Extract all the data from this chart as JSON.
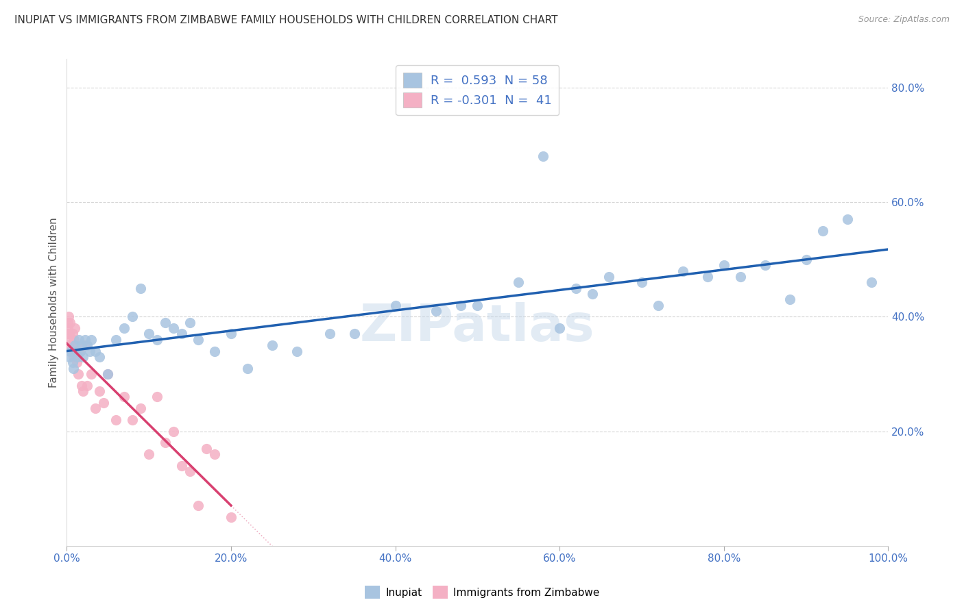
{
  "title": "INUPIAT VS IMMIGRANTS FROM ZIMBABWE FAMILY HOUSEHOLDS WITH CHILDREN CORRELATION CHART",
  "source": "Source: ZipAtlas.com",
  "ylabel": "Family Households with Children",
  "watermark": "ZIPatlas",
  "inupiat_R": 0.593,
  "inupiat_N": 58,
  "zimbabwe_R": -0.301,
  "zimbabwe_N": 41,
  "inupiat_color": "#a8c4e0",
  "zimbabwe_color": "#f4b0c4",
  "inupiat_line_color": "#2060b0",
  "zimbabwe_line_color": "#d84070",
  "background_color": "#ffffff",
  "grid_color": "#cccccc",
  "title_color": "#333333",
  "axis_label_color": "#555555",
  "tick_color": "#4472c4",
  "legend_R_color": "#4472c4",
  "inupiat_x": [
    0.3,
    0.5,
    0.7,
    0.8,
    1.0,
    1.2,
    1.3,
    1.5,
    1.6,
    1.8,
    2.0,
    2.2,
    2.5,
    2.8,
    3.0,
    3.5,
    4.0,
    5.0,
    6.0,
    7.0,
    8.0,
    9.0,
    10.0,
    11.0,
    12.0,
    13.0,
    14.0,
    15.0,
    16.0,
    18.0,
    20.0,
    22.0,
    25.0,
    28.0,
    32.0,
    35.0,
    40.0,
    45.0,
    48.0,
    50.0,
    55.0,
    58.0,
    60.0,
    62.0,
    64.0,
    66.0,
    70.0,
    72.0,
    75.0,
    78.0,
    80.0,
    82.0,
    85.0,
    88.0,
    90.0,
    92.0,
    95.0,
    98.0
  ],
  "inupiat_y": [
    33.0,
    34.0,
    32.0,
    31.0,
    35.0,
    34.0,
    33.0,
    36.0,
    34.0,
    35.0,
    33.0,
    36.0,
    35.0,
    34.0,
    36.0,
    34.0,
    33.0,
    30.0,
    36.0,
    38.0,
    40.0,
    45.0,
    37.0,
    36.0,
    39.0,
    38.0,
    37.0,
    39.0,
    36.0,
    34.0,
    37.0,
    31.0,
    35.0,
    34.0,
    37.0,
    37.0,
    42.0,
    41.0,
    42.0,
    42.0,
    46.0,
    68.0,
    38.0,
    45.0,
    44.0,
    47.0,
    46.0,
    42.0,
    48.0,
    47.0,
    49.0,
    47.0,
    49.0,
    43.0,
    50.0,
    55.0,
    57.0,
    46.0
  ],
  "zimbabwe_x": [
    0.05,
    0.1,
    0.15,
    0.2,
    0.25,
    0.3,
    0.35,
    0.4,
    0.5,
    0.6,
    0.7,
    0.8,
    0.9,
    1.0,
    1.1,
    1.2,
    1.4,
    1.6,
    1.8,
    2.0,
    2.2,
    2.5,
    3.0,
    3.5,
    4.0,
    4.5,
    5.0,
    6.0,
    7.0,
    8.0,
    9.0,
    10.0,
    11.0,
    12.0,
    13.0,
    14.0,
    15.0,
    16.0,
    17.0,
    18.0,
    20.0
  ],
  "zimbabwe_y": [
    37.0,
    38.0,
    39.0,
    40.0,
    35.0,
    37.0,
    34.0,
    39.0,
    36.0,
    35.0,
    37.0,
    33.0,
    36.0,
    38.0,
    33.0,
    32.0,
    30.0,
    34.0,
    28.0,
    27.0,
    35.0,
    28.0,
    30.0,
    24.0,
    27.0,
    25.0,
    30.0,
    22.0,
    26.0,
    22.0,
    24.0,
    16.0,
    26.0,
    18.0,
    20.0,
    14.0,
    13.0,
    7.0,
    17.0,
    16.0,
    5.0
  ],
  "xlim": [
    0,
    100
  ],
  "ylim": [
    0,
    85
  ],
  "xticks": [
    0,
    20,
    40,
    60,
    80,
    100
  ],
  "yticks": [
    20,
    40,
    60,
    80
  ],
  "xticklabels": [
    "0.0%",
    "20.0%",
    "40.0%",
    "60.0%",
    "80.0%",
    "100.0%"
  ],
  "yticklabels": [
    "20.0%",
    "40.0%",
    "60.0%",
    "80.0%"
  ]
}
